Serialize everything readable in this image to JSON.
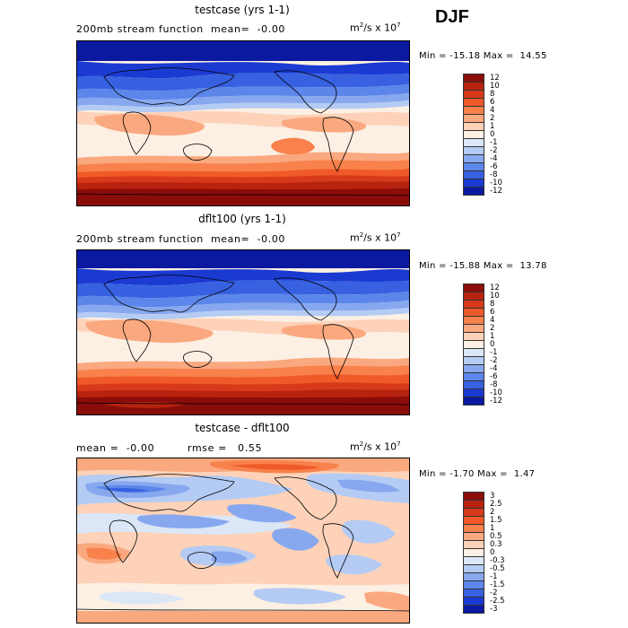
{
  "season": "DJF",
  "panels": [
    {
      "title": "testcase (yrs 1-1)",
      "left_text": "200mb stream function  mean=  -0.00",
      "units_base": "m",
      "units_exp1": "2",
      "units_mid": "/s x 10",
      "units_exp2": "7",
      "minmax": "Min = -15.18 Max =  14.55",
      "levels": [
        "12",
        "10",
        "8",
        "6",
        "4",
        "2",
        "1",
        "0",
        "-1",
        "-2",
        "-4",
        "-6",
        "-8",
        "-10",
        "-12"
      ],
      "colors": [
        "#8a0d0a",
        "#b8230f",
        "#d63a1a",
        "#ef5a28",
        "#f8814c",
        "#faa87f",
        "#fdd2b8",
        "#fcefe3",
        "#dbe7f7",
        "#b4cbf4",
        "#87a8ef",
        "#5c86ea",
        "#3761e0",
        "#1a3ad2",
        "#0a19a0"
      ]
    },
    {
      "title": "dflt100 (yrs 1-1)",
      "left_text": "200mb stream function  mean=  -0.00",
      "units_base": "m",
      "units_exp1": "2",
      "units_mid": "/s x 10",
      "units_exp2": "7",
      "minmax": "Min = -15.88 Max =  13.78",
      "levels": [
        "12",
        "10",
        "8",
        "6",
        "4",
        "2",
        "1",
        "0",
        "-1",
        "-2",
        "-4",
        "-6",
        "-8",
        "-10",
        "-12"
      ],
      "colors": [
        "#8a0d0a",
        "#b8230f",
        "#d63a1a",
        "#ef5a28",
        "#f8814c",
        "#faa87f",
        "#fdd2b8",
        "#fcefe3",
        "#dbe7f7",
        "#b4cbf4",
        "#87a8ef",
        "#5c86ea",
        "#3761e0",
        "#1a3ad2",
        "#0a19a0"
      ]
    },
    {
      "title": "testcase - dflt100",
      "left_text": "mean =  -0.00         rmse =   0.55",
      "units_base": "m",
      "units_exp1": "2",
      "units_mid": "/s x 10",
      "units_exp2": "7",
      "minmax": "Min = -1.70 Max =  1.47",
      "levels": [
        "3",
        "2.5",
        "2",
        "1.5",
        "1",
        "0.5",
        "0.3",
        "0",
        "-0.3",
        "-0.5",
        "-1",
        "-1.5",
        "-2",
        "-2.5",
        "-3"
      ],
      "colors": [
        "#8a0d0a",
        "#b8230f",
        "#d63a1a",
        "#ef5a28",
        "#f8814c",
        "#faa87f",
        "#fdd2b8",
        "#fcefe3",
        "#dbe7f7",
        "#b4cbf4",
        "#87a8ef",
        "#5c86ea",
        "#3761e0",
        "#1a3ad2",
        "#0a19a0"
      ]
    }
  ]
}
